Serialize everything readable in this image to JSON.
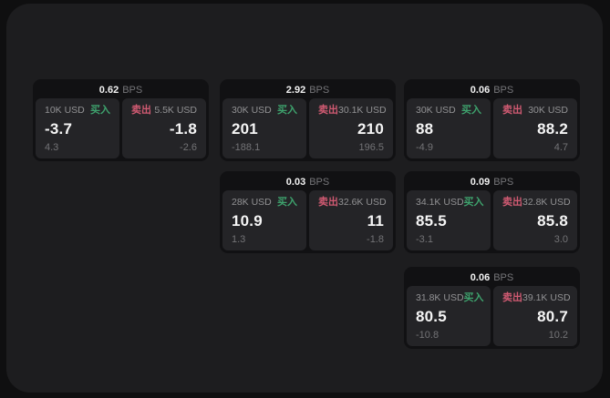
{
  "labels": {
    "bps_suffix": "BPS",
    "buy": "买入",
    "sell": "卖出"
  },
  "colors": {
    "background": "#0f0f10",
    "surface": "#1d1d1f",
    "card": "#111113",
    "panel": "#242427",
    "buy_green": "#3ea26d",
    "sell_red": "#d05a72",
    "primary_text": "#f5f5f5",
    "muted_text": "#929294"
  },
  "cards": [
    {
      "bps": "0.62",
      "buy": {
        "amount": "10K USD",
        "value": "-3.7",
        "change": "4.3"
      },
      "sell": {
        "amount": "5.5K USD",
        "value": "-1.8",
        "change": "-2.6"
      }
    },
    {
      "bps": "2.92",
      "buy": {
        "amount": "30K USD",
        "value": "201",
        "change": "-188.1"
      },
      "sell": {
        "amount": "30.1K USD",
        "value": "210",
        "change": "196.5"
      }
    },
    {
      "bps": "0.06",
      "buy": {
        "amount": "30K USD",
        "value": "88",
        "change": "-4.9"
      },
      "sell": {
        "amount": "30K USD",
        "value": "88.2",
        "change": "4.7"
      }
    },
    {
      "bps": "0.03",
      "buy": {
        "amount": "28K USD",
        "value": "10.9",
        "change": "1.3"
      },
      "sell": {
        "amount": "32.6K USD",
        "value": "11",
        "change": "-1.8"
      }
    },
    {
      "bps": "0.09",
      "buy": {
        "amount": "34.1K USD",
        "value": "85.5",
        "change": "-3.1"
      },
      "sell": {
        "amount": "32.8K USD",
        "value": "85.8",
        "change": "3.0"
      }
    },
    {
      "bps": "0.06",
      "buy": {
        "amount": "31.8K USD",
        "value": "80.5",
        "change": "-10.8"
      },
      "sell": {
        "amount": "39.1K USD",
        "value": "80.7",
        "change": "10.2"
      }
    }
  ]
}
